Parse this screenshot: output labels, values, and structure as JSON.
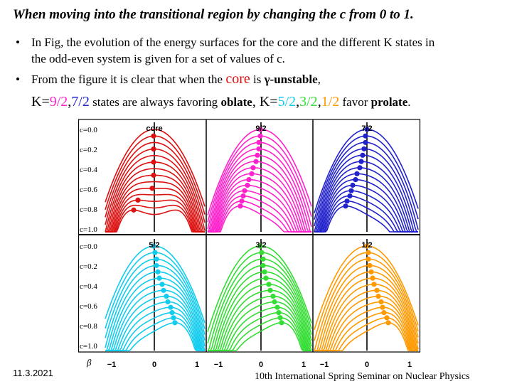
{
  "title": "When moving into the transitional region by changing the c from 0 to 1.",
  "bullet_char": "•",
  "bullets": {
    "b1_line1": "In Fig, the evolution of the energy surfaces for the core and the different K states in",
    "b1_line2": "the odd-even system is given for a set of values of c.",
    "b2_pre": "From the figure it is clear that when the",
    "b2_core": "core",
    "b2_is": "is",
    "b2_gamma": "γ-unstable",
    "b2_comma": ",",
    "b3_k1": "K=",
    "b3_92": "9/2",
    "b3_sep1": ",",
    "b3_72": "7/2",
    "b3_mid1": " states are always favoring",
    "b3_oblate": "oblate",
    "b3_mid2": ", K=",
    "b3_52": "5/2",
    "b3_sep2": ",",
    "b3_32": "3/2",
    "b3_sep3": ",",
    "b3_12": "1/2",
    "b3_favor": " favor",
    "b3_prolate": "prolate",
    "b3_end": "."
  },
  "colors": {
    "core": "#dd1111",
    "k92": "#ff22cc",
    "k72": "#2222cc",
    "k52": "#11ccee",
    "k32": "#33dd33",
    "k12": "#ff9900"
  },
  "figure": {
    "c_labels": [
      "c=0.0",
      "c=0.2",
      "c=0.4",
      "c=0.6",
      "c=0.8",
      "c=1.0"
    ],
    "beta_label": "β",
    "x_ticks": [
      "−1",
      "0",
      "1"
    ],
    "panels": [
      {
        "label": "core",
        "color": "#dd1111",
        "kind": "core"
      },
      {
        "label": "9/2",
        "color": "#ff22cc",
        "kind": "oblate"
      },
      {
        "label": "7/2",
        "color": "#2222cc",
        "kind": "oblate"
      },
      {
        "label": "5/2",
        "color": "#11ccee",
        "kind": "prolate"
      },
      {
        "label": "3/2",
        "color": "#33dd33",
        "kind": "prolate"
      },
      {
        "label": "1/2",
        "color": "#ff9900",
        "kind": "prolate"
      }
    ]
  },
  "date": "11.3.2021",
  "footer": "10th International Spring Seminar on Nuclear Physics"
}
